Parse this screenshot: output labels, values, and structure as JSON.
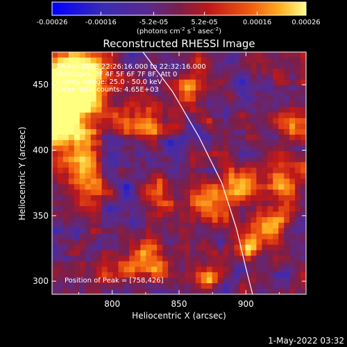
{
  "chart_data": {
    "type": "heatmap",
    "title": "Reconstructed RHESSI Image",
    "xlabel": "Heliocentric X (arcsec)",
    "ylabel": "Heliocentric Y (arcsec)",
    "xlim": [
      755,
      945
    ],
    "ylim": [
      290,
      475
    ],
    "x_ticks": [
      800,
      850,
      900
    ],
    "y_ticks": [
      300,
      350,
      400,
      450
    ],
    "colorbar": {
      "min": -0.00026,
      "max": 0.00026,
      "tick_labels": [
        "-0.00026",
        "-0.00016",
        "-5.2e-05",
        "5.2e-05",
        "0.00016",
        "0.00026"
      ],
      "label_prefix": "(photons cm",
      "label_sup1": "-2",
      "label_mid": " s",
      "label_sup2": "-1",
      "label_mid2": " asec",
      "label_sup3": "-2",
      "label_suffix": ")"
    },
    "annotations": [
      "26-Apr-2003 22:26:16.000 to 22:32:16.000",
      "Detectors: 3F 4F 5F 6F 7F 8F, Att 0",
      "Energy Range: 25.0 - 50.0 keV",
      "Clean     Total counts: 4.65E+03"
    ],
    "peak_label": "Position of Peak = [758,426]",
    "peak": [
      758,
      426
    ],
    "limb_curve": [
      [
        823,
        475
      ],
      [
        845,
        445
      ],
      [
        865,
        410
      ],
      [
        882,
        375
      ],
      [
        893,
        340
      ],
      [
        900,
        310
      ],
      [
        905,
        290
      ]
    ],
    "grid": false
  },
  "footer_timestamp": "1-May-2022 03:32",
  "colors": {
    "background": "#000000",
    "text": "#ffffff",
    "colormap": [
      "#0000ff",
      "#3a2bb5",
      "#5a2a8c",
      "#7a1f4a",
      "#c01818",
      "#f05a10",
      "#ffb020",
      "#ffff80"
    ]
  }
}
